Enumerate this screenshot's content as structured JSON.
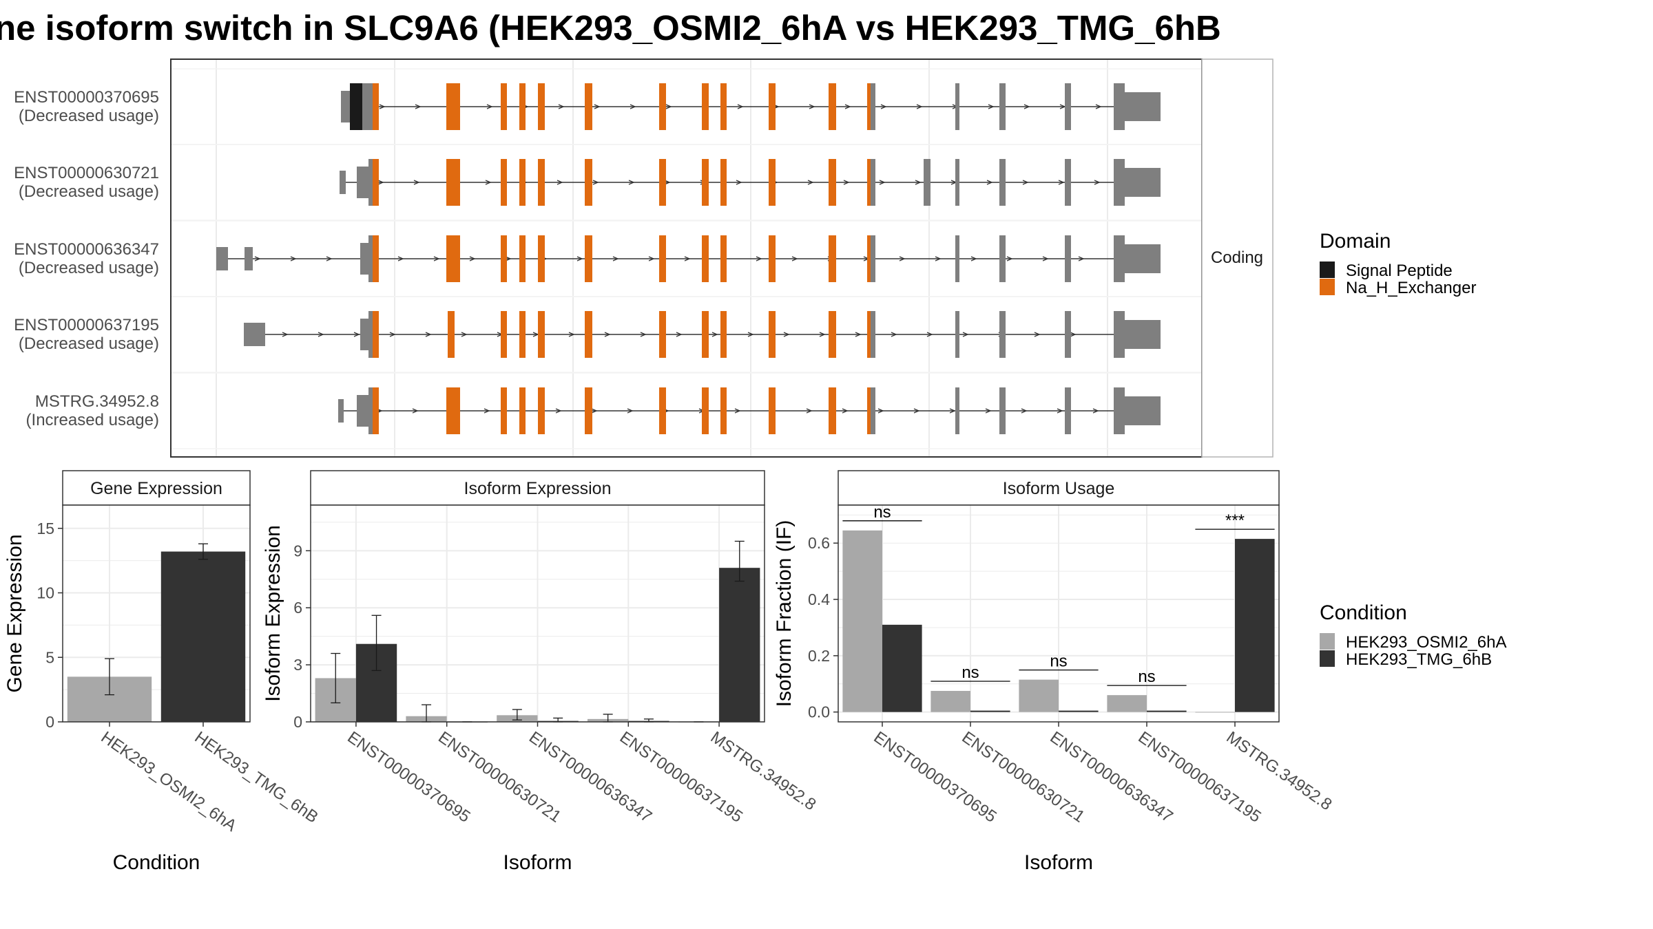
{
  "title": "ne isoform switch in SLC9A6 (HEK293_OSMI2_6hA vs HEK293_TMG_6hB",
  "legends": {
    "domain": {
      "title": "Domain",
      "items": [
        {
          "label": "Signal Peptide",
          "color": "#1a1a1a"
        },
        {
          "label": "Na_H_Exchanger",
          "color": "#e06a10"
        }
      ]
    },
    "condition": {
      "title": "Condition",
      "items": [
        {
          "label": "HEK293_OSMI2_6hA",
          "color": "#a8a8a8"
        },
        {
          "label": "HEK293_TMG_6hB",
          "color": "#333333"
        }
      ]
    }
  },
  "colors": {
    "utr": "#7f7f7f",
    "signal_peptide": "#1a1a1a",
    "domain": "#e06a10",
    "cond_a": "#a8a8a8",
    "cond_b": "#333333",
    "grid": "#ebebeb",
    "strip": "#ffffff"
  },
  "chart_data": [
    {
      "type": "other",
      "facet_label": "Coding",
      "description_free": true,
      "transcripts": [
        {
          "id": "ENST00000370695",
          "usage": "(Decreased usage)"
        },
        {
          "id": "ENST00000630721",
          "usage": "(Decreased usage)"
        },
        {
          "id": "ENST00000636347",
          "usage": "(Decreased usage)"
        },
        {
          "id": "ENST00000637195",
          "usage": "(Decreased usage)"
        },
        {
          "id": "MSTRG.34952.8",
          "usage": "(Increased usage)"
        }
      ]
    },
    {
      "type": "bar",
      "title": "Gene Expression",
      "xlabel": "Condition",
      "ylabel": "Gene Expression",
      "categories": [
        "HEK293_OSMI2_6hA",
        "HEK293_TMG_6hB"
      ],
      "values": [
        3.5,
        13.2
      ],
      "errors": [
        [
          2.1,
          4.9
        ],
        [
          12.6,
          13.8
        ]
      ],
      "ylim": [
        0,
        16.8
      ],
      "yticks": [
        "0",
        "5",
        "10",
        "15"
      ],
      "ytick_values": [
        0,
        5,
        10,
        15
      ]
    },
    {
      "type": "bar",
      "title": "Isoform Expression",
      "xlabel": "Isoform",
      "ylabel": "Isoform Expression",
      "categories": [
        "ENST00000370695",
        "ENST00000630721",
        "ENST00000636347",
        "ENST00000637195",
        "MSTRG.34952.8"
      ],
      "series": [
        {
          "name": "HEK293_OSMI2_6hA",
          "values": [
            2.3,
            0.3,
            0.35,
            0.15,
            0.0
          ],
          "errors": [
            [
              1.0,
              3.6
            ],
            [
              0.0,
              0.9
            ],
            [
              0.1,
              0.65
            ],
            [
              0.0,
              0.4
            ],
            [
              0.0,
              0.0
            ]
          ]
        },
        {
          "name": "HEK293_TMG_6hB",
          "values": [
            4.1,
            0.0,
            0.05,
            0.05,
            8.1
          ],
          "errors": [
            [
              2.7,
              5.6
            ],
            [
              0.0,
              0.0
            ],
            [
              0.0,
              0.2
            ],
            [
              0.0,
              0.15
            ],
            [
              7.4,
              9.5
            ]
          ]
        }
      ],
      "ylim": [
        0,
        11.4
      ],
      "yticks": [
        "0",
        "3",
        "6",
        "9"
      ],
      "ytick_values": [
        0,
        3,
        6,
        9
      ]
    },
    {
      "type": "bar",
      "title": "Isoform Usage",
      "xlabel": "Isoform",
      "ylabel": "Isoform Fraction (IF)",
      "categories": [
        "ENST00000370695",
        "ENST00000630721",
        "ENST00000636347",
        "ENST00000637195",
        "MSTRG.34952.8"
      ],
      "series": [
        {
          "name": "HEK293_OSMI2_6hA",
          "values": [
            0.645,
            0.075,
            0.115,
            0.06,
            0.0
          ]
        },
        {
          "name": "HEK293_TMG_6hB",
          "values": [
            0.31,
            0.005,
            0.005,
            0.005,
            0.615
          ]
        }
      ],
      "significance": [
        "ns",
        "ns",
        "ns",
        "ns",
        "***"
      ],
      "ylim": [
        -0.035,
        0.735
      ],
      "yticks": [
        "0.0",
        "0.2",
        "0.4",
        "0.6"
      ],
      "ytick_values": [
        0,
        0.2,
        0.4,
        0.6
      ]
    }
  ]
}
